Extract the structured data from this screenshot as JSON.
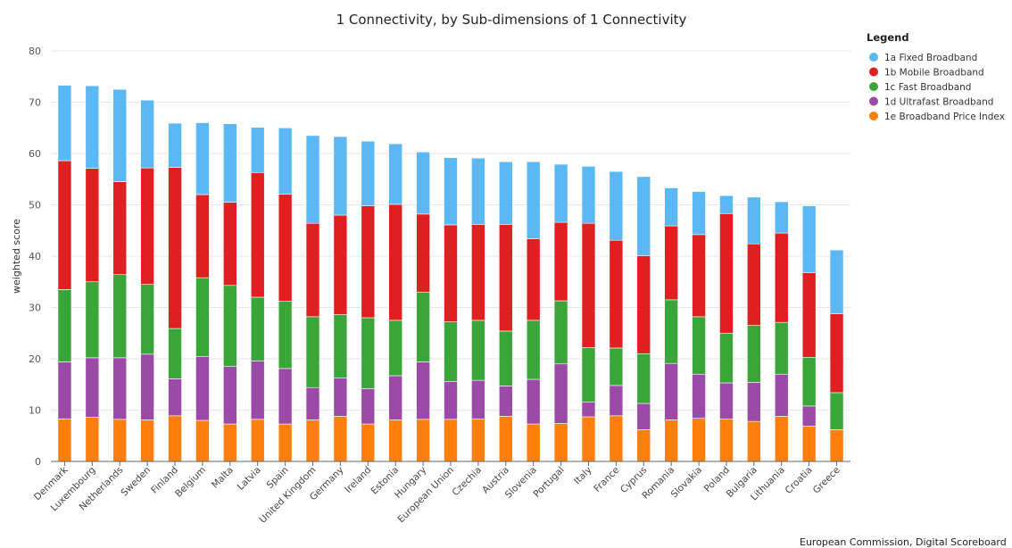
{
  "chart_data": {
    "type": "bar",
    "stacked": true,
    "title": "1 Connectivity, by Sub-dimensions of 1 Connectivity",
    "ylabel": "weighted score",
    "xlabel": "",
    "ylim": [
      0,
      80
    ],
    "yticks": [
      0,
      10,
      20,
      30,
      40,
      50,
      60,
      70,
      80
    ],
    "grid": true,
    "legend": {
      "title": "Legend",
      "placement": "top-right"
    },
    "categories": [
      "Denmark",
      "Luxembourg",
      "Netherlands",
      "Sweden",
      "Finland",
      "Belgium",
      "Malta",
      "Latvia",
      "Spain",
      "United Kingdom",
      "Germany",
      "Ireland",
      "Estonia",
      "Hungary",
      "European Union",
      "Czechia",
      "Austria",
      "Slovenia",
      "Portugal",
      "Italy",
      "France",
      "Cyprus",
      "Romania",
      "Slovakia",
      "Poland",
      "Bulgaria",
      "Lithuania",
      "Croatia",
      "Greece"
    ],
    "series": [
      {
        "name": "1e Broadband Price Index",
        "color": "#ff7f0e",
        "values": [
          8.3,
          8.6,
          8.2,
          8.1,
          8.9,
          8.0,
          7.3,
          8.2,
          7.3,
          8.1,
          8.8,
          7.3,
          8.1,
          8.2,
          8.2,
          8.3,
          8.8,
          7.3,
          7.4,
          8.7,
          8.9,
          6.2,
          8.1,
          8.4,
          8.3,
          7.8,
          8.8,
          6.9,
          6.2
        ]
      },
      {
        "name": "1d Ultrafast Broadband",
        "color": "#9b4aa8",
        "values": [
          11.1,
          11.6,
          12.0,
          12.8,
          7.2,
          12.4,
          11.2,
          11.4,
          10.8,
          6.3,
          7.5,
          6.9,
          8.6,
          11.2,
          7.4,
          7.5,
          5.9,
          8.7,
          11.6,
          2.9,
          5.9,
          5.1,
          11.0,
          8.6,
          7.0,
          7.6,
          8.2,
          3.9,
          0.0
        ]
      },
      {
        "name": "1c Fast Broadband",
        "color": "#3aa63a",
        "values": [
          14.1,
          14.8,
          16.2,
          13.6,
          9.8,
          15.4,
          15.8,
          12.4,
          13.1,
          13.8,
          12.3,
          13.8,
          10.8,
          13.6,
          11.6,
          11.7,
          10.7,
          11.5,
          12.3,
          10.6,
          7.3,
          9.7,
          12.4,
          11.2,
          9.7,
          11.1,
          10.1,
          9.5,
          7.2
        ]
      },
      {
        "name": "1b Mobile Broadband",
        "color": "#e02020",
        "values": [
          25.1,
          22.1,
          18.1,
          22.7,
          31.4,
          16.2,
          16.2,
          24.3,
          20.9,
          18.2,
          19.4,
          21.8,
          22.6,
          15.2,
          18.9,
          18.7,
          20.8,
          15.9,
          15.3,
          24.2,
          21.0,
          19.1,
          14.4,
          16.0,
          23.3,
          15.9,
          17.4,
          16.5,
          15.4
        ]
      },
      {
        "name": "1a Fixed Broadband",
        "color": "#5bb8f5",
        "values": [
          14.7,
          16.1,
          18.0,
          13.2,
          8.6,
          14.0,
          15.3,
          8.8,
          12.9,
          17.1,
          15.3,
          12.6,
          11.8,
          12.1,
          13.1,
          12.9,
          12.2,
          15.0,
          11.3,
          11.1,
          13.4,
          15.4,
          7.4,
          8.4,
          3.5,
          9.1,
          6.1,
          13.0,
          12.4
        ]
      }
    ],
    "legend_order": [
      "1a Fixed Broadband",
      "1b Mobile Broadband",
      "1c Fast Broadband",
      "1d Ultrafast Broadband",
      "1e Broadband Price Index"
    ],
    "credit": "European Commission, Digital Scoreboard"
  }
}
